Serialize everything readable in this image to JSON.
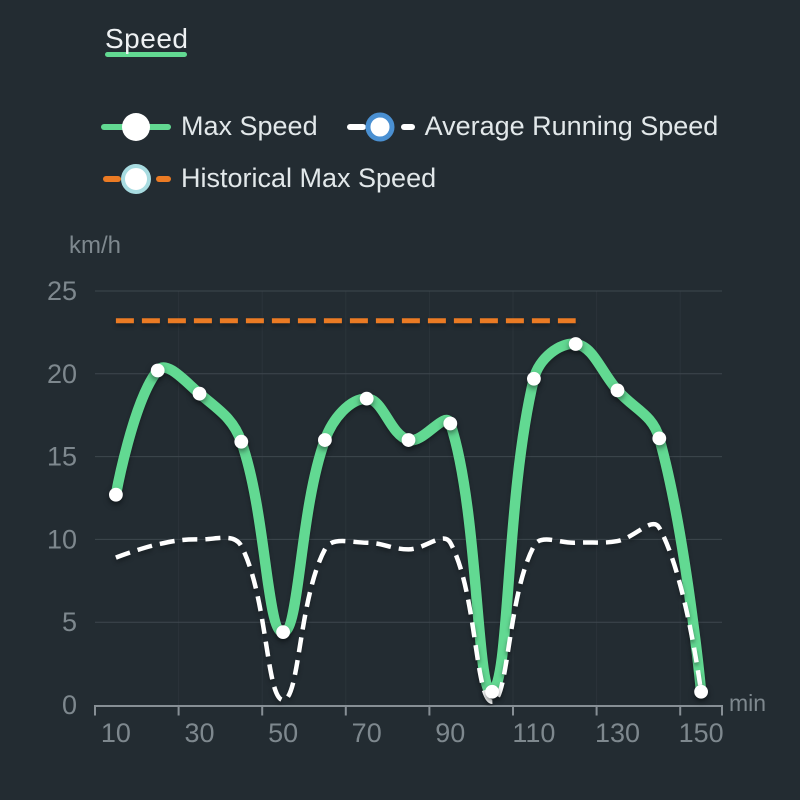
{
  "header": {
    "title": "Speed"
  },
  "legend": [
    {
      "label": "Max Speed",
      "marker": "solid-line-white-dot",
      "line_color": "#62d992",
      "ring_color": null
    },
    {
      "label": "Average Running Speed",
      "marker": "dashed-line-ringed-dot",
      "line_color": "#ffffff",
      "ring_color": "#4a90d2"
    },
    {
      "label": "Historical Max Speed",
      "marker": "dashed-line-ringed-dot",
      "line_color": "#eb7b24",
      "ring_color": "#a8dce1"
    }
  ],
  "colors": {
    "background": "#232c32",
    "title_text": "#eef1f3",
    "legend_text": "#e2e8ea",
    "axis_line": "#878f95",
    "tick_label": "#7e888e",
    "grid_line": "#3e474e",
    "grid_line_vertical": "#2b343a",
    "accent_green": "#62d992",
    "accent_orange": "#eb7b24",
    "accent_blue": "#4a90d2",
    "accent_cyan": "#a8dce1",
    "series_white": "#ffffff"
  },
  "chart_data": {
    "type": "line",
    "title": "Speed",
    "xlabel": "min",
    "ylabel": "km/h",
    "x_unit": "min",
    "y_unit": "km/h",
    "categories": [
      10,
      20,
      30,
      40,
      50,
      60,
      70,
      80,
      90,
      100,
      110,
      120,
      130,
      140,
      150
    ],
    "x_tick_labels": [
      "10",
      "30",
      "50",
      "70",
      "90",
      "110",
      "130",
      "150"
    ],
    "y_ticks": [
      0,
      5,
      10,
      15,
      20,
      25
    ],
    "ylim": [
      0,
      25
    ],
    "grid": true,
    "legend_position": "top-left",
    "series": [
      {
        "name": "Max Speed",
        "type": "line",
        "smooth": true,
        "color": "#62d992",
        "line_width": 10.5,
        "dash": null,
        "show_symbols": true,
        "values": [
          12.7,
          20.2,
          18.8,
          15.9,
          4.4,
          16.0,
          18.5,
          16.0,
          17.0,
          0.8,
          19.7,
          21.8,
          19.0,
          16.1,
          0.8
        ]
      },
      {
        "name": "Average Running Speed",
        "type": "line",
        "smooth": true,
        "color": "#ffffff",
        "line_width": 4.5,
        "dash": [
          15,
          8
        ],
        "show_symbols": false,
        "values": [
          8.9,
          9.7,
          10.0,
          9.6,
          0.3,
          9.4,
          9.8,
          9.4,
          9.8,
          0.2,
          9.6,
          9.8,
          9.9,
          10.7,
          0.8
        ]
      },
      {
        "name": "Historical Max Speed",
        "type": "line",
        "smooth": false,
        "color": "#eb7b24",
        "line_width": 5,
        "dash": [
          18,
          8
        ],
        "show_symbols": false,
        "values": [
          23.2,
          23.2,
          23.2,
          23.2,
          23.2,
          23.2,
          23.2,
          23.2,
          23.2,
          23.2,
          23.2,
          23.2,
          null,
          null,
          null
        ]
      }
    ]
  }
}
